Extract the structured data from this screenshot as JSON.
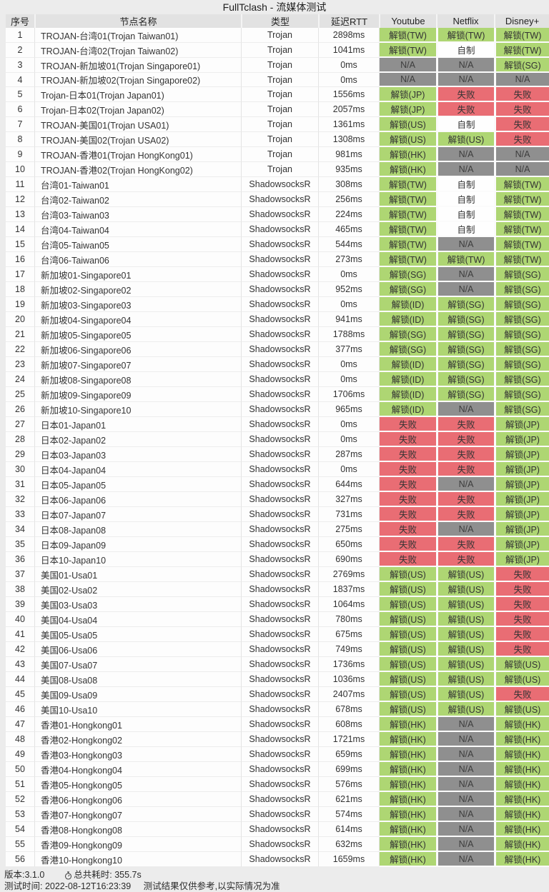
{
  "title": "FullTclash - 流媒体测试",
  "columns": [
    "序号",
    "节点名称",
    "类型",
    "延迟RTT",
    "Youtube",
    "Netflix",
    "Disney+"
  ],
  "colors": {
    "unlock": "#aed673",
    "fail": "#e96d74",
    "na": "#8f8f8f",
    "native": "#fefefe"
  },
  "status_legend": {
    "unlock_prefix": "解锁",
    "fail": "失败",
    "na": "N/A",
    "native": "自制"
  },
  "rows": [
    [
      "TROJAN-台湾01(Trojan Taiwan01)",
      "Trojan",
      "2898ms",
      "解锁(TW)",
      "解锁(TW)",
      "解锁(TW)"
    ],
    [
      "TROJAN-台湾02(Trojan Taiwan02)",
      "Trojan",
      "1041ms",
      "解锁(TW)",
      "自制",
      "解锁(TW)"
    ],
    [
      "TROJAN-新加坡01(Trojan Singapore01)",
      "Trojan",
      "0ms",
      "N/A",
      "N/A",
      "解锁(SG)"
    ],
    [
      "TROJAN-新加坡02(Trojan Singapore02)",
      "Trojan",
      "0ms",
      "N/A",
      "N/A",
      "N/A"
    ],
    [
      "Trojan-日本01(Trojan Japan01)",
      "Trojan",
      "1556ms",
      "解锁(JP)",
      "失败",
      "失败"
    ],
    [
      "Trojan-日本02(Trojan Japan02)",
      "Trojan",
      "2057ms",
      "解锁(JP)",
      "失败",
      "失败"
    ],
    [
      "TROJAN-美国01(Trojan USA01)",
      "Trojan",
      "1361ms",
      "解锁(US)",
      "自制",
      "失败"
    ],
    [
      "TROJAN-美国02(Trojan USA02)",
      "Trojan",
      "1308ms",
      "解锁(US)",
      "解锁(US)",
      "失败"
    ],
    [
      "TROJAN-香港01(Trojan HongKong01)",
      "Trojan",
      "981ms",
      "解锁(HK)",
      "N/A",
      "N/A"
    ],
    [
      "TROJAN-香港02(Trojan HongKong02)",
      "Trojan",
      "935ms",
      "解锁(HK)",
      "N/A",
      "N/A"
    ],
    [
      "台湾01-Taiwan01",
      "ShadowsocksR",
      "308ms",
      "解锁(TW)",
      "自制",
      "解锁(TW)"
    ],
    [
      "台湾02-Taiwan02",
      "ShadowsocksR",
      "256ms",
      "解锁(TW)",
      "自制",
      "解锁(TW)"
    ],
    [
      "台湾03-Taiwan03",
      "ShadowsocksR",
      "224ms",
      "解锁(TW)",
      "自制",
      "解锁(TW)"
    ],
    [
      "台湾04-Taiwan04",
      "ShadowsocksR",
      "465ms",
      "解锁(TW)",
      "自制",
      "解锁(TW)"
    ],
    [
      "台湾05-Taiwan05",
      "ShadowsocksR",
      "544ms",
      "解锁(TW)",
      "N/A",
      "解锁(TW)"
    ],
    [
      "台湾06-Taiwan06",
      "ShadowsocksR",
      "273ms",
      "解锁(TW)",
      "解锁(TW)",
      "解锁(TW)"
    ],
    [
      "新加坡01-Singapore01",
      "ShadowsocksR",
      "0ms",
      "解锁(SG)",
      "N/A",
      "解锁(SG)"
    ],
    [
      "新加坡02-Singapore02",
      "ShadowsocksR",
      "952ms",
      "解锁(SG)",
      "N/A",
      "解锁(SG)"
    ],
    [
      "新加坡03-Singapore03",
      "ShadowsocksR",
      "0ms",
      "解锁(ID)",
      "解锁(SG)",
      "解锁(SG)"
    ],
    [
      "新加坡04-Singapore04",
      "ShadowsocksR",
      "941ms",
      "解锁(ID)",
      "解锁(SG)",
      "解锁(SG)"
    ],
    [
      "新加坡05-Singapore05",
      "ShadowsocksR",
      "1788ms",
      "解锁(SG)",
      "解锁(SG)",
      "解锁(SG)"
    ],
    [
      "新加坡06-Singapore06",
      "ShadowsocksR",
      "377ms",
      "解锁(SG)",
      "解锁(SG)",
      "解锁(SG)"
    ],
    [
      "新加坡07-Singapore07",
      "ShadowsocksR",
      "0ms",
      "解锁(ID)",
      "解锁(SG)",
      "解锁(SG)"
    ],
    [
      "新加坡08-Singapore08",
      "ShadowsocksR",
      "0ms",
      "解锁(ID)",
      "解锁(SG)",
      "解锁(SG)"
    ],
    [
      "新加坡09-Singapore09",
      "ShadowsocksR",
      "1706ms",
      "解锁(ID)",
      "解锁(SG)",
      "解锁(SG)"
    ],
    [
      "新加坡10-Singapore10",
      "ShadowsocksR",
      "965ms",
      "解锁(ID)",
      "N/A",
      "解锁(SG)"
    ],
    [
      "日本01-Japan01",
      "ShadowsocksR",
      "0ms",
      "失败",
      "失败",
      "解锁(JP)"
    ],
    [
      "日本02-Japan02",
      "ShadowsocksR",
      "0ms",
      "失败",
      "失败",
      "解锁(JP)"
    ],
    [
      "日本03-Japan03",
      "ShadowsocksR",
      "287ms",
      "失败",
      "失败",
      "解锁(JP)"
    ],
    [
      "日本04-Japan04",
      "ShadowsocksR",
      "0ms",
      "失败",
      "失败",
      "解锁(JP)"
    ],
    [
      "日本05-Japan05",
      "ShadowsocksR",
      "644ms",
      "失败",
      "N/A",
      "解锁(JP)"
    ],
    [
      "日本06-Japan06",
      "ShadowsocksR",
      "327ms",
      "失败",
      "失败",
      "解锁(JP)"
    ],
    [
      "日本07-Japan07",
      "ShadowsocksR",
      "731ms",
      "失败",
      "失败",
      "解锁(JP)"
    ],
    [
      "日本08-Japan08",
      "ShadowsocksR",
      "275ms",
      "失败",
      "N/A",
      "解锁(JP)"
    ],
    [
      "日本09-Japan09",
      "ShadowsocksR",
      "650ms",
      "失败",
      "失败",
      "解锁(JP)"
    ],
    [
      "日本10-Japan10",
      "ShadowsocksR",
      "690ms",
      "失败",
      "失败",
      "解锁(JP)"
    ],
    [
      "美国01-Usa01",
      "ShadowsocksR",
      "2769ms",
      "解锁(US)",
      "解锁(US)",
      "失败"
    ],
    [
      "美国02-Usa02",
      "ShadowsocksR",
      "1837ms",
      "解锁(US)",
      "解锁(US)",
      "失败"
    ],
    [
      "美国03-Usa03",
      "ShadowsocksR",
      "1064ms",
      "解锁(US)",
      "解锁(US)",
      "失败"
    ],
    [
      "美国04-Usa04",
      "ShadowsocksR",
      "780ms",
      "解锁(US)",
      "解锁(US)",
      "失败"
    ],
    [
      "美国05-Usa05",
      "ShadowsocksR",
      "675ms",
      "解锁(US)",
      "解锁(US)",
      "失败"
    ],
    [
      "美国06-Usa06",
      "ShadowsocksR",
      "749ms",
      "解锁(US)",
      "解锁(US)",
      "失败"
    ],
    [
      "美国07-Usa07",
      "ShadowsocksR",
      "1736ms",
      "解锁(US)",
      "解锁(US)",
      "解锁(US)"
    ],
    [
      "美国08-Usa08",
      "ShadowsocksR",
      "1036ms",
      "解锁(US)",
      "解锁(US)",
      "解锁(US)"
    ],
    [
      "美国09-Usa09",
      "ShadowsocksR",
      "2407ms",
      "解锁(US)",
      "解锁(US)",
      "失败"
    ],
    [
      "美国10-Usa10",
      "ShadowsocksR",
      "678ms",
      "解锁(US)",
      "解锁(US)",
      "解锁(US)"
    ],
    [
      "香港01-Hongkong01",
      "ShadowsocksR",
      "608ms",
      "解锁(HK)",
      "N/A",
      "解锁(HK)"
    ],
    [
      "香港02-Hongkong02",
      "ShadowsocksR",
      "1721ms",
      "解锁(HK)",
      "N/A",
      "解锁(HK)"
    ],
    [
      "香港03-Hongkong03",
      "ShadowsocksR",
      "659ms",
      "解锁(HK)",
      "N/A",
      "解锁(HK)"
    ],
    [
      "香港04-Hongkong04",
      "ShadowsocksR",
      "699ms",
      "解锁(HK)",
      "N/A",
      "解锁(HK)"
    ],
    [
      "香港05-Hongkong05",
      "ShadowsocksR",
      "576ms",
      "解锁(HK)",
      "N/A",
      "解锁(HK)"
    ],
    [
      "香港06-Hongkong06",
      "ShadowsocksR",
      "621ms",
      "解锁(HK)",
      "N/A",
      "解锁(HK)"
    ],
    [
      "香港07-Hongkong07",
      "ShadowsocksR",
      "574ms",
      "解锁(HK)",
      "N/A",
      "解锁(HK)"
    ],
    [
      "香港08-Hongkong08",
      "ShadowsocksR",
      "614ms",
      "解锁(HK)",
      "N/A",
      "解锁(HK)"
    ],
    [
      "香港09-Hongkong09",
      "ShadowsocksR",
      "632ms",
      "解锁(HK)",
      "N/A",
      "解锁(HK)"
    ],
    [
      "香港10-Hongkong10",
      "ShadowsocksR",
      "1659ms",
      "解锁(HK)",
      "N/A",
      "解锁(HK)"
    ]
  ],
  "footer": {
    "version": "版本:3.1.0",
    "duration_icon": "stopwatch-icon",
    "duration": "总共耗时: 355.7s",
    "test_time": "测试时间: 2022-08-12T16:23:39",
    "disclaimer": "测试结果仅供参考,以实际情况为准"
  }
}
